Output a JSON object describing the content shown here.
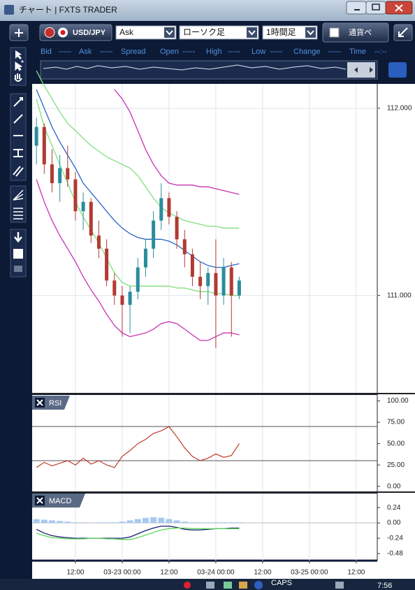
{
  "window": {
    "title": "チャート | FXTS TRADER"
  },
  "toolbar": {
    "symbol": "USD/JPY",
    "price_side": "Ask",
    "chart_type": "ローソク足",
    "timeframe": "1時間足",
    "pair_label": "通貨ペ"
  },
  "quote_bar": [
    {
      "label": "Bid",
      "value": "-----"
    },
    {
      "label": "Ask",
      "value": "-----"
    },
    {
      "label": "Spread"
    },
    {
      "label": "Open",
      "value": "-----"
    },
    {
      "label": "High",
      "value": "-----"
    },
    {
      "label": "Low",
      "value": "-----"
    },
    {
      "label": "Change",
      "value": "-----"
    },
    {
      "label": "Time",
      "value": "--:--"
    }
  ],
  "chart_data": [
    {
      "type": "candlestick",
      "x": [
        -22,
        -20,
        -18,
        -16,
        -14,
        -12,
        -10,
        -8,
        -6,
        -4,
        -2,
        0,
        2,
        4,
        6,
        8,
        10,
        12,
        14,
        16,
        18,
        20,
        22,
        24,
        26,
        28,
        30
      ],
      "open": [
        111.8,
        111.9,
        111.7,
        111.6,
        111.68,
        111.62,
        111.45,
        111.5,
        111.32,
        111.25,
        111.08,
        111.0,
        110.95,
        111.02,
        111.15,
        111.25,
        111.4,
        111.52,
        111.42,
        111.3,
        111.22,
        111.1,
        111.05,
        111.12,
        111.0,
        111.15,
        111.0
      ],
      "high": [
        111.95,
        111.92,
        111.78,
        111.75,
        111.8,
        111.66,
        111.55,
        111.52,
        111.4,
        111.3,
        111.12,
        111.05,
        111.05,
        111.2,
        111.3,
        111.45,
        111.6,
        111.55,
        111.45,
        111.35,
        111.25,
        111.18,
        111.15,
        111.3,
        111.2,
        111.18,
        111.1
      ],
      "low": [
        111.7,
        111.65,
        111.55,
        111.5,
        111.58,
        111.4,
        111.35,
        111.28,
        111.2,
        111.05,
        110.95,
        110.78,
        110.8,
        110.98,
        111.1,
        111.2,
        111.35,
        111.38,
        111.25,
        111.15,
        111.05,
        110.98,
        110.95,
        110.72,
        110.95,
        110.78,
        110.98
      ],
      "close": [
        111.9,
        111.7,
        111.6,
        111.68,
        111.62,
        111.45,
        111.5,
        111.32,
        111.25,
        111.08,
        111.0,
        110.95,
        111.02,
        111.15,
        111.25,
        111.4,
        111.52,
        111.42,
        111.3,
        111.22,
        111.1,
        111.05,
        111.12,
        111.0,
        111.15,
        111.0,
        111.08
      ],
      "up_color": "#2a8c9c",
      "down_color": "#b23a32",
      "series": [
        {
          "color": "#2a66c4",
          "values": [
            112.1,
            112.0,
            111.9,
            111.82,
            111.75,
            111.68,
            111.6,
            111.55,
            111.5,
            111.45,
            111.4,
            111.36,
            111.33,
            111.31,
            111.3,
            111.3,
            111.3,
            111.29,
            111.27,
            111.24,
            111.21,
            111.18,
            111.16,
            111.15,
            111.15,
            111.16,
            111.17
          ]
        },
        {
          "color": "#7ee07e",
          "values": [
            112.2,
            112.12,
            112.05,
            111.98,
            111.92,
            111.88,
            111.84,
            111.8,
            111.77,
            111.74,
            111.72,
            111.7,
            111.68,
            111.64,
            111.58,
            111.52,
            111.47,
            111.44,
            111.42,
            111.4,
            111.39,
            111.38,
            111.37,
            111.37,
            111.36,
            111.36,
            111.36
          ]
        },
        {
          "color": "#7ee07e",
          "values": [
            112.05,
            111.9,
            111.8,
            111.7,
            111.6,
            111.5,
            111.42,
            111.35,
            111.28,
            111.2,
            111.12,
            111.07,
            111.05,
            111.05,
            111.05,
            111.05,
            111.05,
            111.05,
            111.04,
            111.04,
            111.03,
            111.02,
            111.02,
            111.01,
            111.01,
            111.0,
            111.0
          ]
        },
        {
          "color": "#c832b4",
          "values": [
            null,
            null,
            null,
            null,
            null,
            null,
            null,
            null,
            null,
            null,
            112.1,
            112.05,
            111.98,
            111.88,
            111.78,
            111.7,
            111.64,
            111.6,
            111.59,
            111.59,
            111.59,
            111.58,
            111.58,
            111.57,
            111.56,
            111.55,
            111.54
          ]
        },
        {
          "color": "#c832b4",
          "values": [
            111.62,
            111.5,
            111.4,
            111.32,
            111.25,
            111.18,
            111.1,
            111.03,
            110.97,
            110.9,
            110.84,
            110.8,
            110.78,
            110.79,
            110.8,
            110.82,
            110.85,
            110.86,
            110.85,
            110.82,
            110.79,
            110.76,
            110.76,
            110.78,
            110.8,
            110.8,
            110.79
          ]
        }
      ],
      "xlim": [
        -23.1,
        65.4
      ],
      "xticks": [
        {
          "value": -12,
          "label": "12:00"
        },
        {
          "value": 0,
          "label": "03-23 00:00"
        },
        {
          "value": 12,
          "label": "12:00"
        },
        {
          "value": 24,
          "label": "03-24 00:00"
        },
        {
          "value": 36,
          "label": "12:00"
        },
        {
          "value": 48,
          "label": "03-25 00:00"
        },
        {
          "value": 60,
          "label": "12:00"
        }
      ],
      "ylim": [
        110.48,
        112.13
      ],
      "yticks": [
        {
          "value": 112,
          "label": "112.000"
        },
        {
          "value": 111,
          "label": "111.000"
        }
      ],
      "grid": true
    },
    {
      "type": "line",
      "title": "RSI",
      "color": "#c0392b",
      "values": [
        22,
        28,
        24,
        27,
        30,
        25,
        33,
        26,
        30,
        25,
        22,
        35,
        42,
        50,
        55,
        62,
        65,
        70,
        58,
        45,
        35,
        30,
        33,
        38,
        34,
        36,
        50
      ],
      "levels": [
        70,
        30
      ],
      "ylim": [
        -6,
        107
      ],
      "yticks": [
        {
          "value": 100,
          "label": "100.00"
        },
        {
          "value": 75,
          "label": "75.00"
        },
        {
          "value": 50,
          "label": "50.00"
        },
        {
          "value": 25,
          "label": "25.00"
        },
        {
          "value": 0,
          "label": "0.00"
        }
      ]
    },
    {
      "type": "macd",
      "title": "MACD",
      "histogram": {
        "color": "#a8c8f0",
        "values": [
          0.06,
          0.05,
          0.04,
          0.03,
          0.02,
          0.01,
          0.01,
          0.0,
          0.01,
          0.01,
          0.01,
          0.02,
          0.04,
          0.06,
          0.08,
          0.09,
          0.08,
          0.06,
          0.04,
          0.02,
          0.01,
          0.01,
          0.01,
          0.01,
          0.01,
          0.01,
          0.01
        ]
      },
      "series": [
        {
          "color": "#14206a",
          "values": [
            -0.1,
            -0.16,
            -0.2,
            -0.22,
            -0.23,
            -0.24,
            -0.24,
            -0.24,
            -0.24,
            -0.24,
            -0.24,
            -0.24,
            -0.22,
            -0.17,
            -0.12,
            -0.08,
            -0.05,
            -0.05,
            -0.07,
            -0.1,
            -0.11,
            -0.11,
            -0.1,
            -0.09,
            -0.09,
            -0.08,
            -0.08
          ]
        },
        {
          "color": "#5cd65c",
          "values": [
            -0.16,
            -0.2,
            -0.23,
            -0.24,
            -0.25,
            -0.25,
            -0.25,
            -0.24,
            -0.24,
            -0.25,
            -0.25,
            -0.26,
            -0.26,
            -0.23,
            -0.19,
            -0.15,
            -0.11,
            -0.09,
            -0.08,
            -0.08,
            -0.09,
            -0.09,
            -0.09,
            -0.09,
            -0.09,
            -0.09,
            -0.09
          ]
        }
      ],
      "ylim": [
        -0.59,
        0.46
      ],
      "yticks": [
        0.24,
        {
          "value": 0,
          "label": "0.00"
        },
        -0.24,
        -0.48
      ]
    }
  ],
  "taskbar": {
    "indicator": "CAPS",
    "clock": "7:56"
  }
}
